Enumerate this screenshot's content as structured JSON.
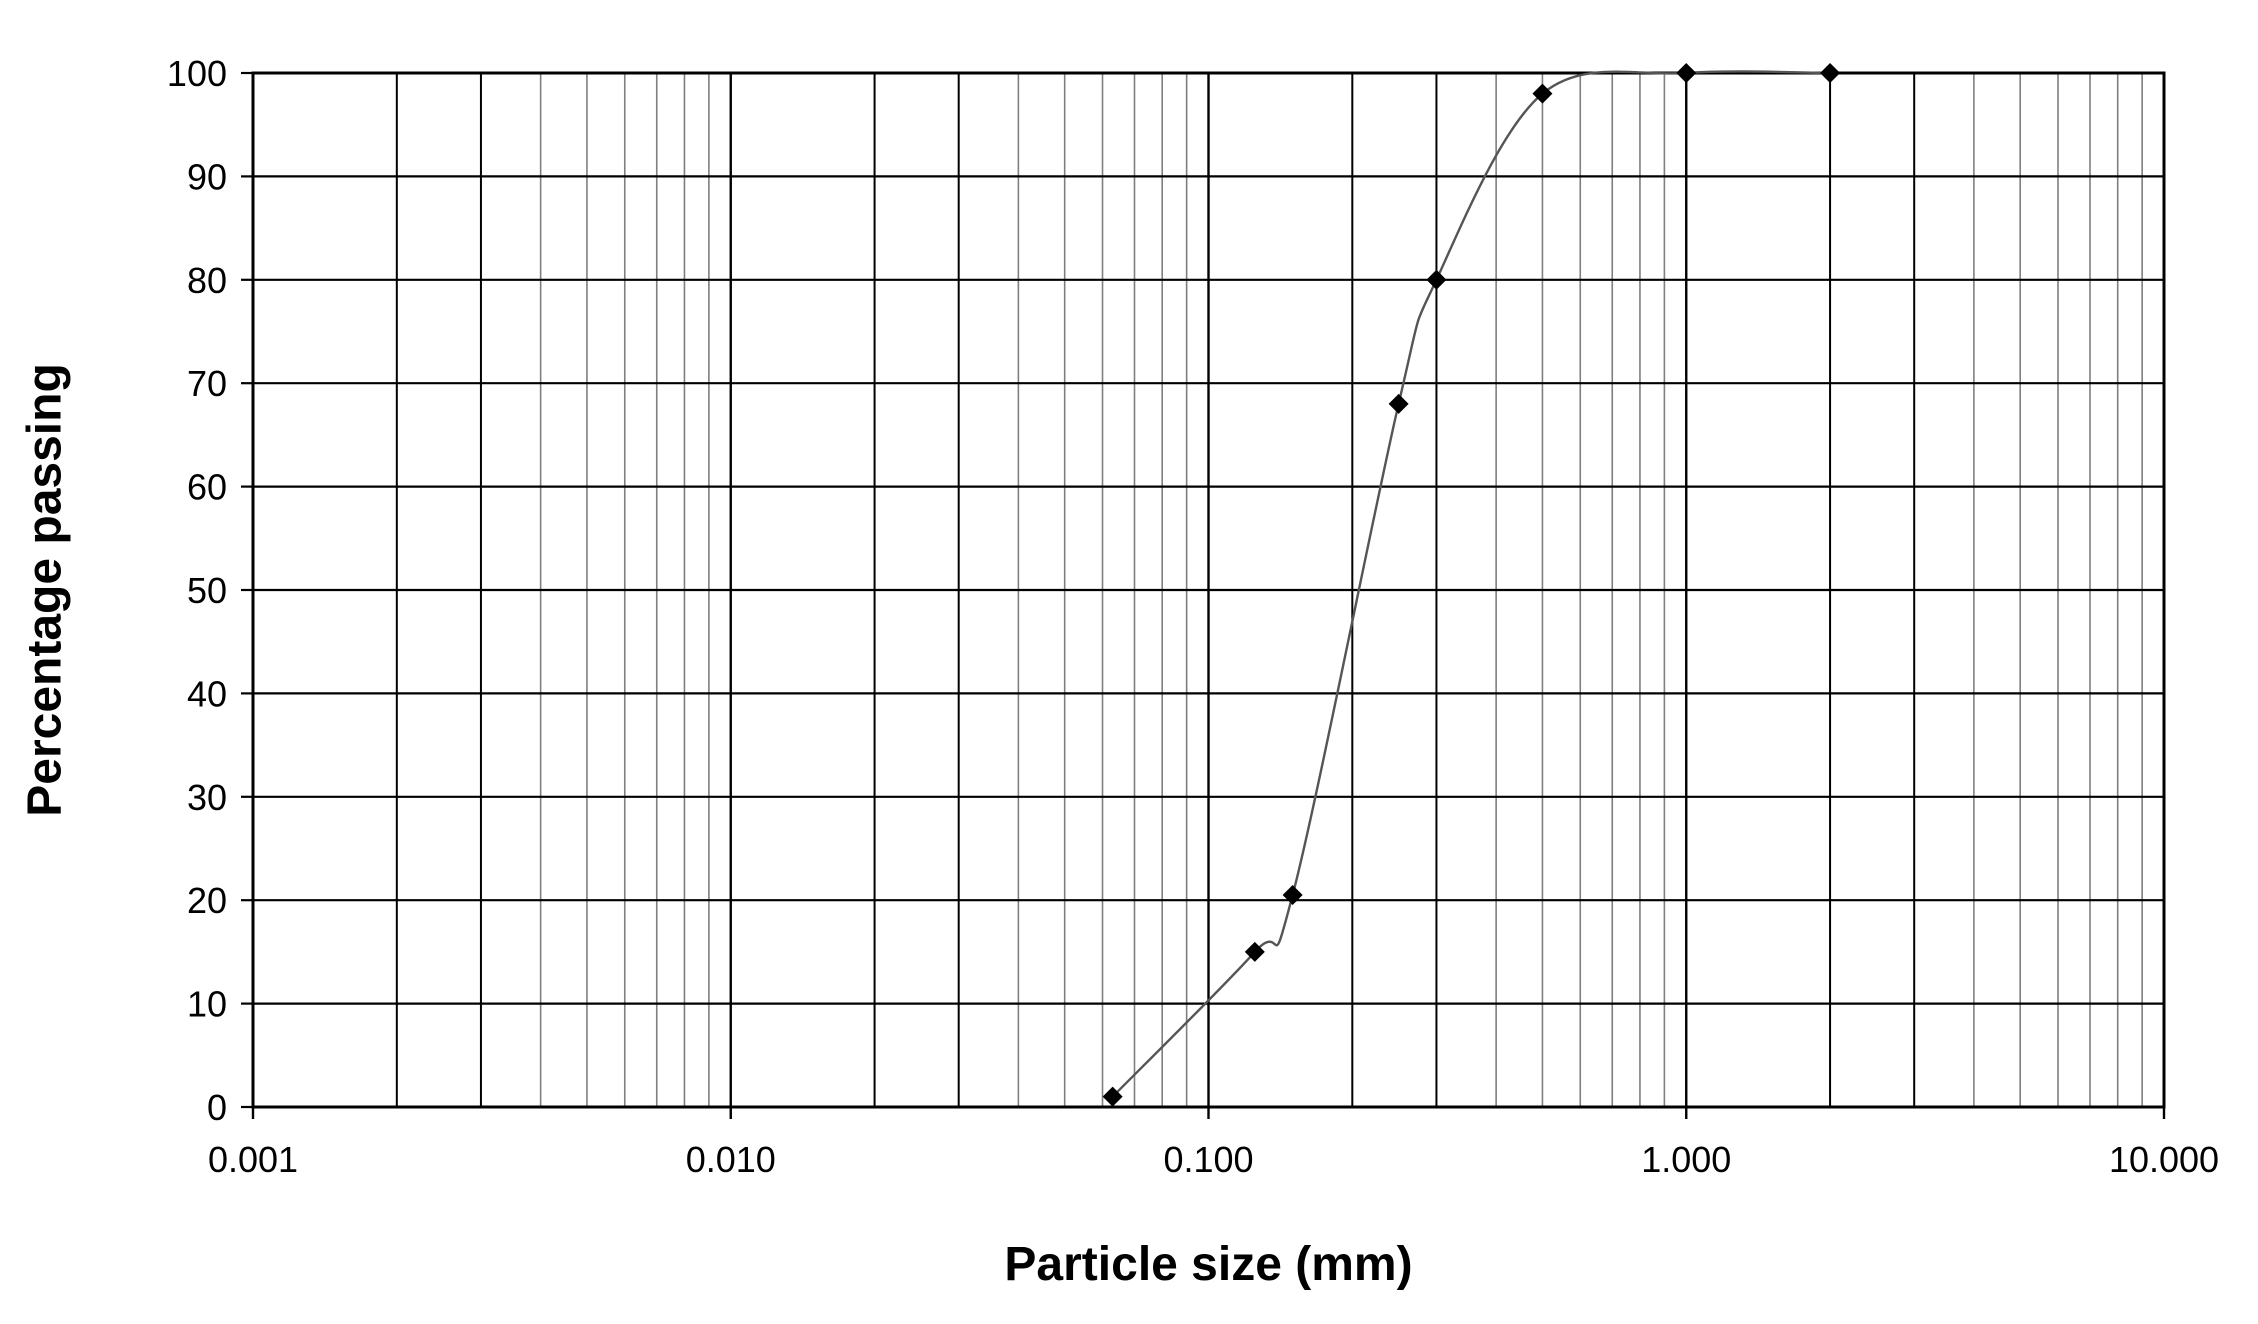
{
  "chart_data": {
    "type": "scatter",
    "title": "",
    "xlabel": "Particle size (mm)",
    "ylabel": "Percentage passing",
    "x_scale": "log",
    "xlim": [
      0.001,
      10
    ],
    "ylim": [
      0,
      100
    ],
    "x_ticks": [
      0.001,
      0.01,
      0.1,
      1,
      10
    ],
    "x_tick_labels": [
      "0.001",
      "0.010",
      "0.100",
      "1.000",
      "10.000"
    ],
    "y_ticks": [
      0,
      10,
      20,
      30,
      40,
      50,
      60,
      70,
      80,
      90,
      100
    ],
    "y_tick_labels": [
      "0",
      "10",
      "20",
      "30",
      "40",
      "50",
      "60",
      "70",
      "80",
      "90",
      "100"
    ],
    "grid": true,
    "marker": "diamond",
    "line": "smooth",
    "series": [
      {
        "x": [
          0.063,
          0.125,
          0.15,
          0.25,
          0.3,
          0.5,
          1.0,
          2.0
        ],
        "y": [
          1,
          15,
          20.5,
          68,
          80,
          98,
          100,
          100
        ]
      }
    ],
    "colors": {
      "grid_major": "#000000",
      "grid_minor": "#7f7f7f",
      "line": "#555555",
      "marker": "#000000"
    }
  }
}
